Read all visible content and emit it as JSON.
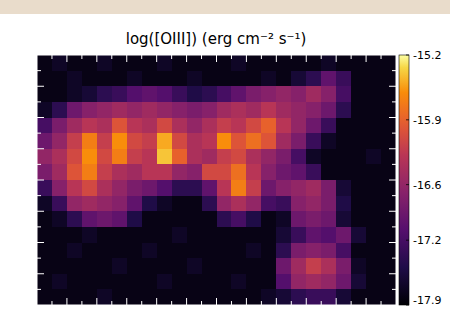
{
  "chart_data": {
    "type": "heatmap",
    "title": "log([OIII]) (erg cm⁻² s⁻¹)",
    "tick_labels": false,
    "colorbar": {
      "lim": [
        -17.9,
        -15.2
      ],
      "ticks": [
        -15.2,
        -15.9,
        -16.6,
        -17.2,
        -17.9
      ]
    },
    "cells": [
      [
        -17.8,
        -17.7,
        -17.8,
        -17.8,
        -17.7,
        -17.8,
        -17.8,
        -17.8,
        -17.7,
        -17.8,
        -17.8,
        -17.8,
        -17.8,
        -17.7,
        -17.8,
        -17.8,
        -17.8,
        -17.8,
        -17.8,
        -17.7,
        -17.8,
        -17.8,
        -17.8,
        -17.8
      ],
      [
        -17.8,
        -17.8,
        -17.7,
        -17.8,
        -17.8,
        -17.8,
        -17.7,
        -17.8,
        -17.8,
        -17.8,
        -17.7,
        -17.8,
        -17.8,
        -17.8,
        -17.8,
        -17.7,
        -17.8,
        -17.6,
        -17.4,
        -17.0,
        -17.3,
        -17.8,
        -17.8,
        -17.8
      ],
      [
        -17.8,
        -17.8,
        -17.7,
        -17.6,
        -17.4,
        -17.3,
        -17.1,
        -17.0,
        -17.1,
        -17.3,
        -17.5,
        -17.4,
        -17.2,
        -17.0,
        -16.8,
        -16.7,
        -16.6,
        -16.7,
        -16.5,
        -16.7,
        -17.2,
        -17.8,
        -17.8,
        -17.8
      ],
      [
        -17.7,
        -17.4,
        -16.9,
        -16.7,
        -16.6,
        -16.5,
        -16.6,
        -16.5,
        -16.6,
        -16.7,
        -16.8,
        -16.7,
        -16.5,
        -16.4,
        -16.5,
        -16.3,
        -16.5,
        -16.6,
        -16.7,
        -16.9,
        -17.4,
        -17.8,
        -17.8,
        -17.8
      ],
      [
        -17.2,
        -16.8,
        -16.5,
        -16.3,
        -16.4,
        -16.0,
        -16.3,
        -16.4,
        -16.1,
        -16.4,
        -16.6,
        -16.4,
        -16.2,
        -16.3,
        -16.1,
        -15.9,
        -16.3,
        -16.6,
        -16.9,
        -17.3,
        -17.8,
        -17.8,
        -17.8,
        -17.8
      ],
      [
        -16.9,
        -16.6,
        -16.2,
        -15.7,
        -16.2,
        -15.6,
        -16.1,
        -16.2,
        -15.5,
        -16.1,
        -16.4,
        -16.3,
        -15.6,
        -16.0,
        -15.8,
        -16.0,
        -16.5,
        -16.8,
        -17.3,
        -17.7,
        -17.8,
        -17.8,
        -17.8,
        -17.8
      ],
      [
        -16.6,
        -16.4,
        -16.1,
        -15.6,
        -16.1,
        -15.7,
        -16.2,
        -16.3,
        -15.4,
        -15.9,
        -16.4,
        -16.5,
        -16.2,
        -16.1,
        -16.4,
        -16.6,
        -16.8,
        -17.2,
        -17.7,
        -17.8,
        -17.8,
        -17.8,
        -17.7,
        -17.8
      ],
      [
        -16.8,
        -16.5,
        -16.0,
        -15.7,
        -16.2,
        -16.4,
        -16.5,
        -16.3,
        -16.3,
        -16.6,
        -16.7,
        -16.1,
        -16.1,
        -15.8,
        -16.3,
        -16.7,
        -16.9,
        -17.0,
        -17.3,
        -17.8,
        -17.8,
        -17.8,
        -17.8,
        -17.8
      ],
      [
        -17.3,
        -16.7,
        -16.3,
        -16.1,
        -16.4,
        -16.6,
        -16.8,
        -16.9,
        -17.1,
        -17.4,
        -17.4,
        -17.0,
        -16.3,
        -15.7,
        -16.2,
        -16.9,
        -16.7,
        -16.6,
        -16.5,
        -16.8,
        -17.6,
        -17.8,
        -17.8,
        -17.8
      ],
      [
        -17.7,
        -17.3,
        -16.6,
        -16.5,
        -16.6,
        -16.7,
        -17.0,
        -17.5,
        -17.7,
        -17.8,
        -17.8,
        -17.4,
        -16.6,
        -16.4,
        -16.6,
        -17.2,
        -17.3,
        -16.7,
        -16.6,
        -16.8,
        -17.5,
        -17.8,
        -17.8,
        -17.8
      ],
      [
        -17.8,
        -17.7,
        -17.4,
        -17.0,
        -16.9,
        -17.0,
        -17.5,
        -17.8,
        -17.8,
        -17.8,
        -17.8,
        -17.8,
        -17.4,
        -17.2,
        -17.5,
        -17.8,
        -17.7,
        -16.9,
        -16.8,
        -16.9,
        -17.6,
        -17.8,
        -17.8,
        -17.8
      ],
      [
        -17.8,
        -17.8,
        -17.8,
        -17.7,
        -17.8,
        -17.8,
        -17.8,
        -17.8,
        -17.8,
        -17.7,
        -17.8,
        -17.8,
        -17.8,
        -17.8,
        -17.8,
        -17.8,
        -17.6,
        -17.3,
        -17.0,
        -17.1,
        -16.9,
        -17.6,
        -17.8,
        -17.8
      ],
      [
        -17.8,
        -17.8,
        -17.7,
        -17.8,
        -17.8,
        -17.8,
        -17.8,
        -17.7,
        -17.8,
        -17.8,
        -17.8,
        -17.8,
        -17.8,
        -17.8,
        -17.7,
        -17.8,
        -17.4,
        -16.8,
        -16.7,
        -16.8,
        -17.2,
        -17.8,
        -17.8,
        -17.8
      ],
      [
        -17.8,
        -17.8,
        -17.8,
        -17.8,
        -17.8,
        -17.7,
        -17.8,
        -17.8,
        -17.8,
        -17.8,
        -17.7,
        -17.8,
        -17.8,
        -17.8,
        -17.8,
        -17.8,
        -16.9,
        -16.5,
        -16.2,
        -16.4,
        -16.8,
        -17.7,
        -17.8,
        -17.8
      ],
      [
        -17.8,
        -17.7,
        -17.8,
        -17.8,
        -17.8,
        -17.8,
        -17.8,
        -17.8,
        -17.7,
        -17.8,
        -17.8,
        -17.8,
        -17.8,
        -17.7,
        -17.8,
        -17.8,
        -17.1,
        -16.6,
        -16.5,
        -16.6,
        -16.9,
        -17.6,
        -17.8,
        -17.8
      ],
      [
        -17.8,
        -17.8,
        -17.8,
        -17.8,
        -17.7,
        -17.8,
        -17.8,
        -17.8,
        -17.8,
        -17.8,
        -17.8,
        -17.8,
        -17.8,
        -17.8,
        -17.8,
        -17.7,
        -17.6,
        -17.4,
        -17.3,
        -17.3,
        -17.6,
        -17.8,
        -17.8,
        -17.8
      ]
    ]
  }
}
